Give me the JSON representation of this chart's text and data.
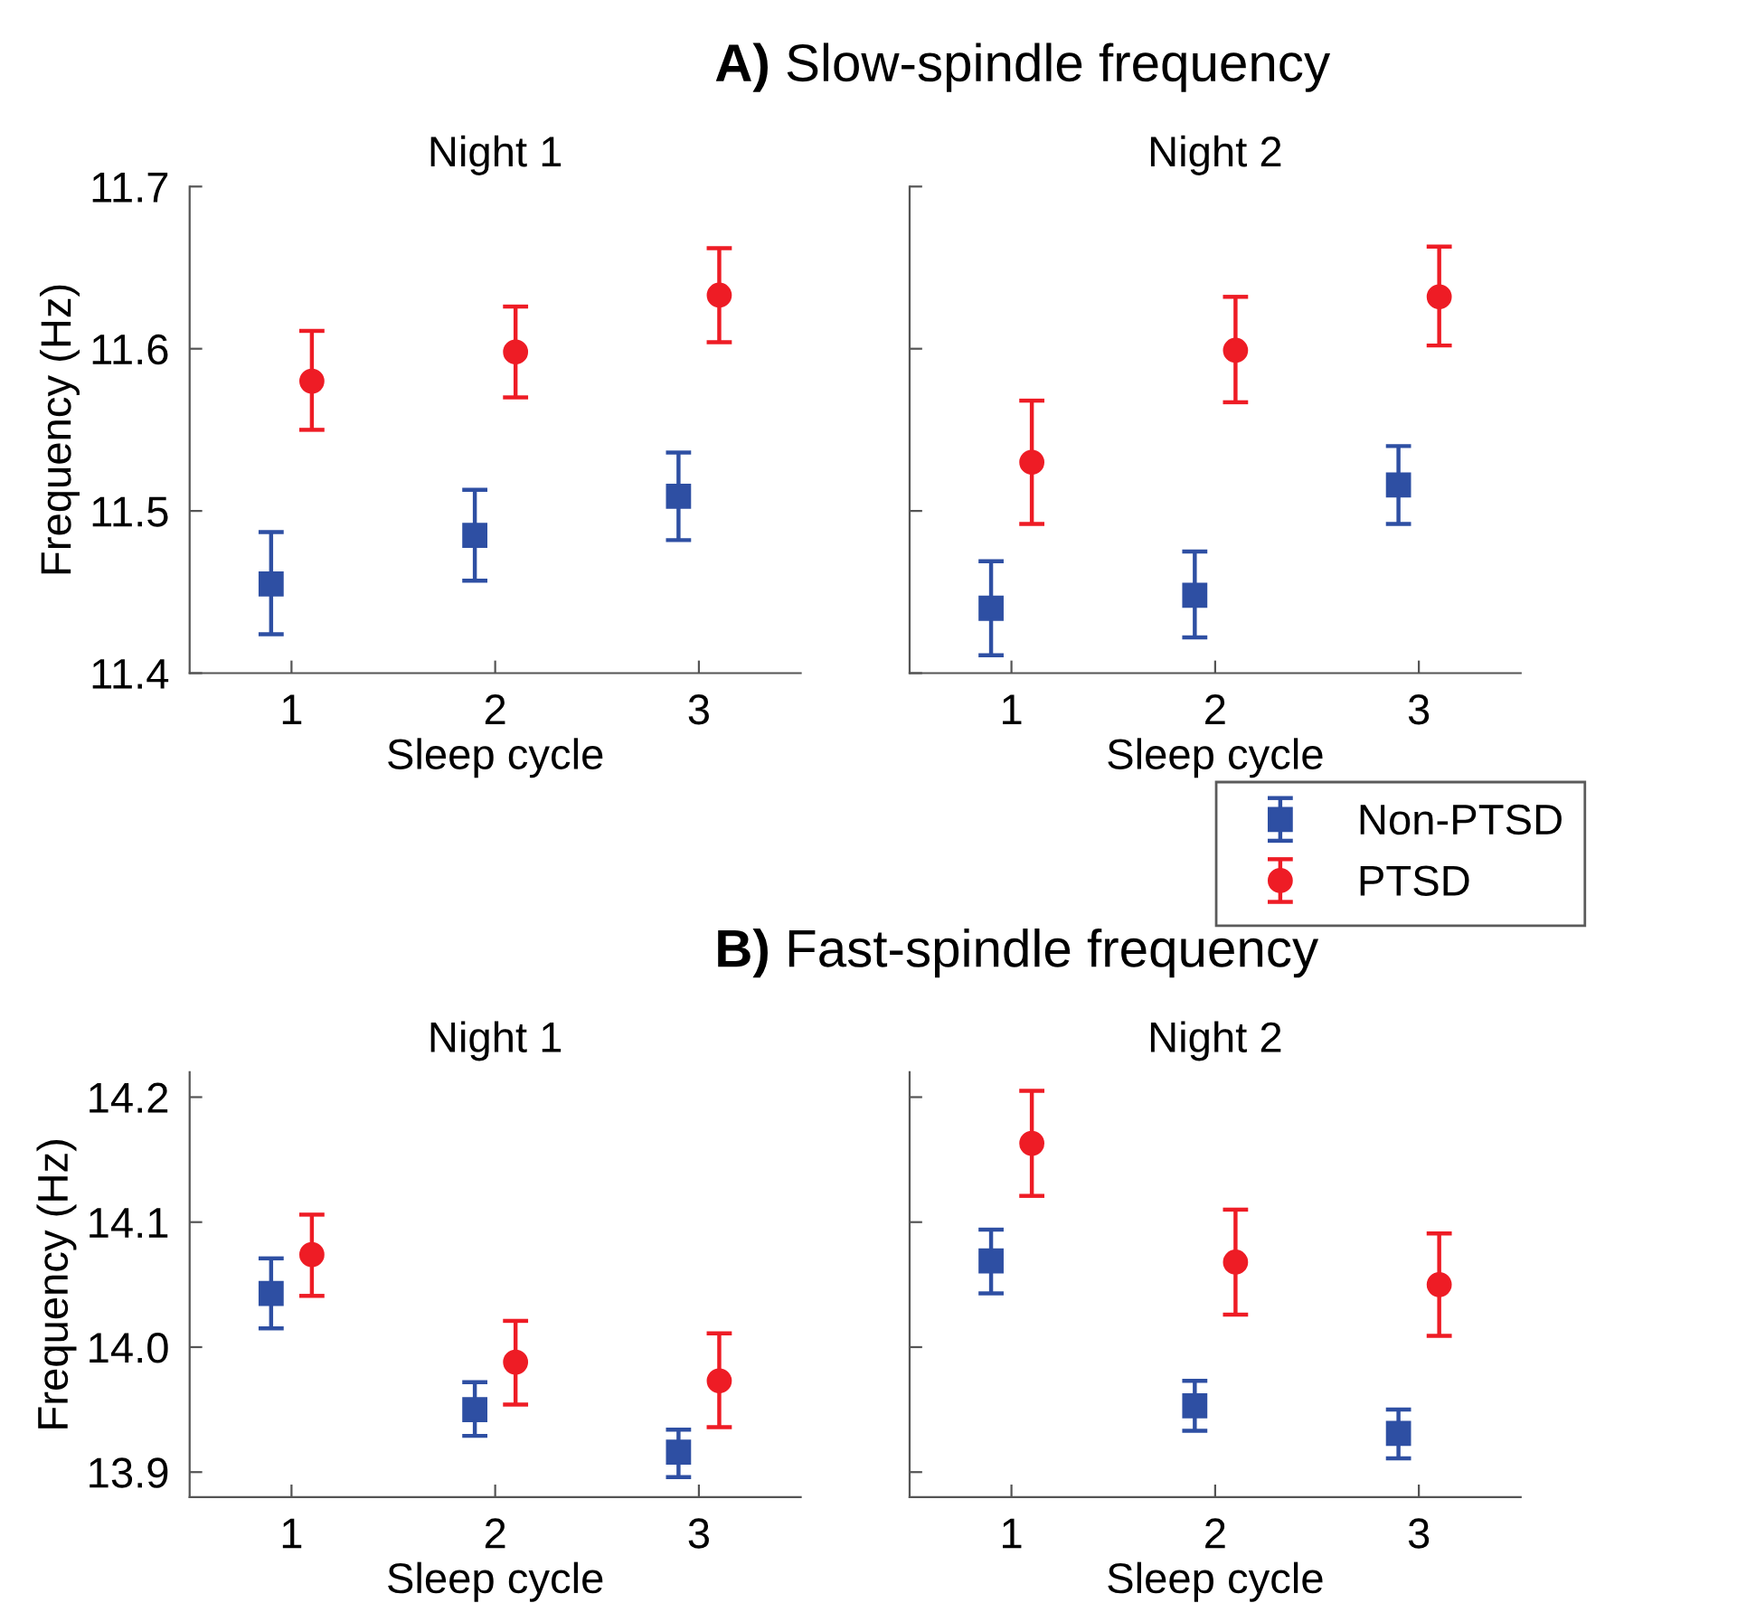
{
  "chart_data": [
    {
      "type": "scatter",
      "annotations": [
        "A) Slow-spindle frequency"
      ],
      "subtitle": "Night 1",
      "xlabel": "Sleep cycle",
      "ylabel": "Frequency (Hz)",
      "xlim": [
        0.5,
        3.5
      ],
      "xticks": [
        1,
        2,
        3
      ],
      "ylim": [
        11.4,
        11.7
      ],
      "yticks": [
        11.4,
        11.5,
        11.6,
        11.7
      ],
      "grid": false,
      "legend": false,
      "series": [
        {
          "color": "#2e4fa3",
          "marker": "square",
          "x": [
            0.9,
            1.9,
            2.9
          ],
          "values": [
            11.455,
            11.485,
            11.509
          ],
          "errors": [
            [
              11.424,
              11.487
            ],
            [
              11.457,
              11.513
            ],
            [
              11.482,
              11.536
            ]
          ]
        },
        {
          "color": "#ee1c25",
          "marker": "circle",
          "x": [
            1.1,
            2.1,
            3.1
          ],
          "values": [
            11.58,
            11.598,
            11.633
          ],
          "errors": [
            [
              11.55,
              11.611
            ],
            [
              11.57,
              11.626
            ],
            [
              11.604,
              11.662
            ]
          ]
        }
      ]
    },
    {
      "type": "scatter",
      "subtitle": "Night 2",
      "xlabel": "Sleep cycle",
      "xlim": [
        0.5,
        3.5
      ],
      "xticks": [
        1,
        2,
        3
      ],
      "ylim": [
        11.4,
        11.7
      ],
      "yticks": [
        11.4,
        11.5,
        11.6,
        11.7
      ],
      "tick_labels": "x",
      "grid": false,
      "legend": "bottom right",
      "series": [
        {
          "name": "Non-PTSD",
          "color": "#2e4fa3",
          "marker": "square",
          "x": [
            0.9,
            1.9,
            2.9
          ],
          "values": [
            11.44,
            11.448,
            11.516
          ],
          "errors": [
            [
              11.411,
              11.469
            ],
            [
              11.422,
              11.475
            ],
            [
              11.492,
              11.54
            ]
          ]
        },
        {
          "name": "PTSD",
          "color": "#ee1c25",
          "marker": "circle",
          "x": [
            1.1,
            2.1,
            3.1
          ],
          "values": [
            11.53,
            11.599,
            11.632
          ],
          "errors": [
            [
              11.492,
              11.568
            ],
            [
              11.567,
              11.632
            ],
            [
              11.602,
              11.663
            ]
          ]
        }
      ]
    },
    {
      "type": "scatter",
      "annotations": [
        "B) Fast-spindle frequency"
      ],
      "subtitle": "Night 1",
      "xlabel": "Sleep cycle",
      "ylabel": "Frequency (Hz)",
      "xlim": [
        0.5,
        3.5
      ],
      "xticks": [
        1,
        2,
        3
      ],
      "ylim": [
        13.88,
        14.22
      ],
      "yticks": [
        13.9,
        {
          "value": 14.0,
          "label": "14.0"
        },
        14.1,
        14.2
      ],
      "grid": false,
      "legend": false,
      "series": [
        {
          "color": "#2e4fa3",
          "marker": "square",
          "x": [
            0.9,
            1.9,
            2.9
          ],
          "values": [
            14.043,
            13.95,
            13.916
          ],
          "errors": [
            [
              14.015,
              14.071
            ],
            [
              13.929,
              13.972
            ],
            [
              13.896,
              13.934
            ]
          ]
        },
        {
          "color": "#ee1c25",
          "marker": "circle",
          "x": [
            1.1,
            2.1,
            3.1
          ],
          "values": [
            14.074,
            13.988,
            13.973
          ],
          "errors": [
            [
              14.041,
              14.106
            ],
            [
              13.954,
              14.021
            ],
            [
              13.936,
              14.011
            ]
          ]
        }
      ]
    },
    {
      "type": "scatter",
      "subtitle": "Night 2",
      "xlabel": "Sleep cycle",
      "xlim": [
        0.5,
        3.5
      ],
      "xticks": [
        1,
        2,
        3
      ],
      "ylim": [
        13.88,
        14.22
      ],
      "yticks": [
        13.9,
        14.0,
        14.1,
        14.2
      ],
      "tick_labels": "x",
      "grid": false,
      "legend": false,
      "series": [
        {
          "color": "#2e4fa3",
          "marker": "square",
          "x": [
            0.9,
            1.9,
            2.9
          ],
          "values": [
            14.069,
            13.953,
            13.931
          ],
          "errors": [
            [
              14.043,
              14.094
            ],
            [
              13.933,
              13.973
            ],
            [
              13.911,
              13.95
            ]
          ]
        },
        {
          "color": "#ee1c25",
          "marker": "circle",
          "x": [
            1.1,
            2.1,
            3.1
          ],
          "values": [
            14.163,
            14.068,
            14.05
          ],
          "errors": [
            [
              14.121,
              14.205
            ],
            [
              14.026,
              14.11
            ],
            [
              14.009,
              14.091
            ]
          ]
        }
      ]
    }
  ]
}
